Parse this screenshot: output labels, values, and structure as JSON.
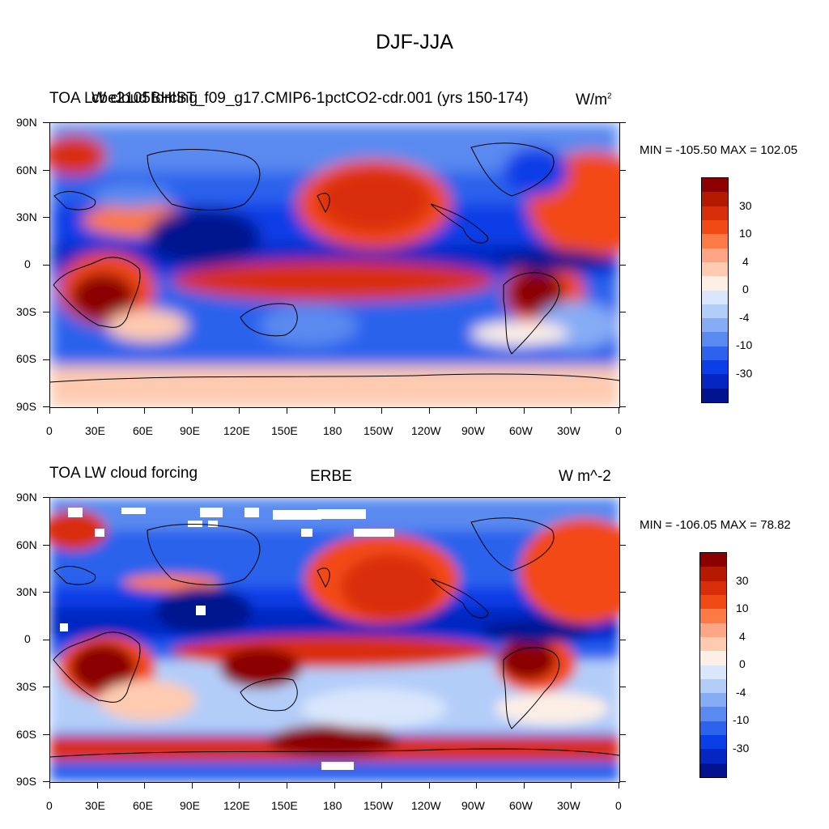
{
  "title": "DJF-JJA",
  "panels": [
    {
      "left_title": "TOA LW cloud forcing",
      "center_title": "cbe2105BHIST_f09_g17.CMIP6-1pctCO2-cdr.001 (yrs 150-174)",
      "units": "W/m",
      "units_sup": "2",
      "minmax": "MIN = -105.50 MAX = 102.05",
      "overprinted": true
    },
    {
      "left_title": "TOA LW cloud forcing",
      "center_title": "ERBE",
      "units": "W m^-2",
      "units_sup": "",
      "minmax": "MIN = -106.05 MAX =  78.82",
      "overprinted": false
    }
  ],
  "lat_labels": [
    "90N",
    "60N",
    "30N",
    "0",
    "30S",
    "60S",
    "90S"
  ],
  "lon_labels": [
    "0",
    "30E",
    "60E",
    "90E",
    "120E",
    "150E",
    "180",
    "150W",
    "120W",
    "90W",
    "60W",
    "30W",
    "0"
  ],
  "colorbar": {
    "labels": [
      "30",
      "10",
      "4",
      "0",
      "-4",
      "-10",
      "-30"
    ],
    "colors": [
      "#8b0000",
      "#b31a00",
      "#d92e0a",
      "#f24a14",
      "#fc7a45",
      "#fda584",
      "#fecab0",
      "#fdefe6",
      "#d9e6fb",
      "#b3cdf9",
      "#86acf5",
      "#5a8af0",
      "#2c62ec",
      "#0a3ee6",
      "#0526c2",
      "#03128f"
    ]
  }
}
